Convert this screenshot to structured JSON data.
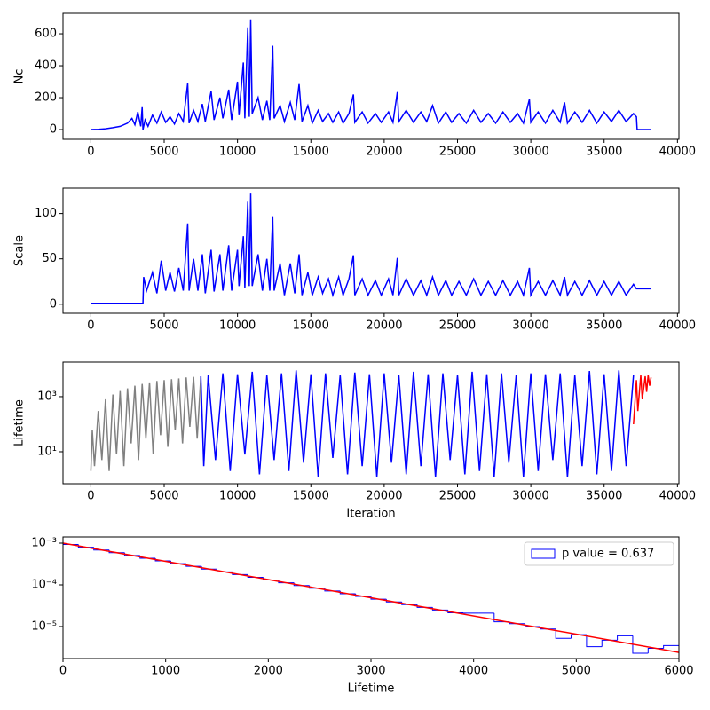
{
  "chart_data": [
    {
      "type": "line",
      "ylabel": "Nc",
      "xlim": [
        -1900,
        40100
      ],
      "ylim": [
        -61,
        728
      ],
      "xticks": [
        0,
        5000,
        10000,
        15000,
        20000,
        25000,
        30000,
        35000,
        40000
      ],
      "yticks": [
        0,
        200,
        400,
        600
      ],
      "series": [
        {
          "color": "blue",
          "x": [
            0,
            500,
            1000,
            1500,
            2000,
            2500,
            2800,
            3000,
            3200,
            3400,
            3500,
            3550,
            3700,
            3900,
            4200,
            4500,
            4800,
            5100,
            5400,
            5700,
            6000,
            6300,
            6600,
            6700,
            7000,
            7300,
            7600,
            7800,
            8200,
            8400,
            8800,
            9000,
            9400,
            9600,
            10000,
            10100,
            10400,
            10500,
            10700,
            10800,
            10900,
            11000,
            11400,
            11700,
            12000,
            12200,
            12400,
            12500,
            12900,
            13200,
            13600,
            13900,
            14200,
            14400,
            14800,
            15100,
            15500,
            15800,
            16200,
            16500,
            16900,
            17200,
            17600,
            17900,
            18000,
            18500,
            18900,
            19400,
            19800,
            20300,
            20600,
            20900,
            21000,
            21500,
            22000,
            22500,
            22900,
            23300,
            23700,
            24200,
            24600,
            25100,
            25600,
            26100,
            26600,
            27100,
            27600,
            28100,
            28600,
            29100,
            29500,
            29900,
            30000,
            30500,
            31000,
            31500,
            32000,
            32300,
            32500,
            33000,
            33500,
            34000,
            34500,
            35000,
            35500,
            36000,
            36500,
            37000,
            37200,
            37250,
            38200
          ],
          "values": [
            0,
            2,
            5,
            12,
            20,
            40,
            70,
            30,
            110,
            20,
            140,
            0,
            60,
            20,
            90,
            40,
            110,
            45,
            80,
            35,
            100,
            50,
            290,
            40,
            120,
            50,
            160,
            50,
            240,
            60,
            200,
            70,
            250,
            60,
            300,
            90,
            420,
            70,
            640,
            80,
            690,
            100,
            200,
            60,
            180,
            60,
            525,
            70,
            150,
            50,
            170,
            60,
            285,
            50,
            150,
            40,
            120,
            50,
            100,
            45,
            110,
            40,
            100,
            220,
            45,
            110,
            40,
            100,
            45,
            110,
            45,
            235,
            50,
            120,
            45,
            110,
            50,
            150,
            40,
            110,
            45,
            100,
            40,
            120,
            45,
            100,
            40,
            110,
            45,
            100,
            40,
            190,
            45,
            110,
            40,
            120,
            45,
            170,
            40,
            110,
            45,
            120,
            40,
            110,
            50,
            120,
            50,
            100,
            80,
            0,
            0
          ]
        }
      ]
    },
    {
      "type": "line",
      "ylabel": "Scale",
      "xlim": [
        -1900,
        40100
      ],
      "ylim": [
        -10,
        128
      ],
      "xticks": [
        0,
        5000,
        10000,
        15000,
        20000,
        25000,
        30000,
        35000,
        40000
      ],
      "yticks": [
        0,
        50,
        100
      ],
      "series": [
        {
          "color": "blue",
          "x": [
            0,
            3550,
            3600,
            3800,
            4200,
            4500,
            4800,
            5100,
            5400,
            5700,
            6000,
            6300,
            6600,
            6700,
            7000,
            7300,
            7600,
            7800,
            8200,
            8400,
            8800,
            9000,
            9400,
            9600,
            10000,
            10100,
            10400,
            10500,
            10700,
            10800,
            10900,
            11000,
            11400,
            11700,
            12000,
            12200,
            12400,
            12500,
            12900,
            13200,
            13600,
            13900,
            14200,
            14400,
            14800,
            15100,
            15500,
            15800,
            16200,
            16500,
            16900,
            17200,
            17600,
            17900,
            18000,
            18500,
            18900,
            19400,
            19800,
            20300,
            20600,
            20900,
            21000,
            21500,
            22000,
            22500,
            22900,
            23300,
            23700,
            24200,
            24600,
            25100,
            25600,
            26100,
            26600,
            27100,
            27600,
            28100,
            28600,
            29100,
            29500,
            29900,
            30000,
            30500,
            31000,
            31500,
            32000,
            32300,
            32500,
            33000,
            33500,
            34000,
            34500,
            35000,
            35500,
            36000,
            36500,
            37000,
            37200,
            38200
          ],
          "values": [
            1,
            1,
            30,
            15,
            35,
            12,
            48,
            15,
            35,
            14,
            40,
            15,
            89,
            15,
            50,
            15,
            55,
            12,
            60,
            14,
            55,
            15,
            65,
            15,
            60,
            20,
            75,
            18,
            113,
            20,
            122,
            20,
            55,
            15,
            50,
            15,
            97,
            15,
            45,
            10,
            45,
            12,
            55,
            10,
            35,
            10,
            30,
            12,
            28,
            10,
            30,
            10,
            28,
            54,
            10,
            28,
            10,
            26,
            10,
            28,
            10,
            51,
            10,
            28,
            10,
            26,
            10,
            30,
            10,
            26,
            10,
            25,
            10,
            28,
            10,
            25,
            10,
            26,
            10,
            25,
            10,
            40,
            10,
            25,
            10,
            26,
            10,
            30,
            10,
            25,
            10,
            26,
            10,
            25,
            10,
            25,
            10,
            22,
            17,
            17
          ]
        }
      ]
    },
    {
      "type": "line",
      "ylabel": "Lifetime",
      "xlabel": "Iteration",
      "log_y": true,
      "xlim": [
        -1900,
        40100
      ],
      "ylim": [
        0.69,
        18000
      ],
      "xticks": [
        0,
        5000,
        10000,
        15000,
        20000,
        25000,
        30000,
        35000,
        40000
      ],
      "yticks": [
        {
          "value": 10,
          "label": "10¹"
        },
        {
          "value": 1000,
          "label": "10³"
        }
      ],
      "series": [
        {
          "color": "gray",
          "x": [
            0,
            100,
            250,
            500,
            750,
            1000,
            1250,
            1500,
            1750,
            2000,
            2250,
            2500,
            2750,
            3000,
            3250,
            3500,
            3750,
            4000,
            4250,
            4500,
            4750,
            5000,
            5250,
            5500,
            5750,
            6000,
            6250,
            6500,
            6750,
            7000,
            7250,
            7500
          ],
          "values": [
            2,
            60,
            3,
            300,
            5,
            800,
            2,
            1200,
            8,
            1600,
            3,
            2000,
            20,
            2500,
            5,
            2900,
            30,
            3300,
            8,
            3700,
            40,
            4000,
            15,
            4300,
            60,
            4600,
            20,
            5000,
            80,
            5200,
            30,
            5500
          ]
        },
        {
          "color": "blue",
          "x": [
            7500,
            7700,
            8000,
            8500,
            9000,
            9500,
            10000,
            10500,
            11000,
            11500,
            12000,
            12500,
            13000,
            13500,
            14000,
            14500,
            15000,
            15500,
            16000,
            16500,
            17000,
            17500,
            18000,
            18500,
            19000,
            19500,
            20000,
            20500,
            21000,
            21500,
            22000,
            22500,
            23000,
            23500,
            24000,
            24500,
            25000,
            25500,
            26000,
            26500,
            27000,
            27500,
            28000,
            28500,
            29000,
            29500,
            30000,
            30500,
            31000,
            31500,
            32000,
            32500,
            33000,
            33500,
            34000,
            34500,
            35000,
            35500,
            36000,
            36500,
            37000
          ],
          "values": [
            5500,
            3,
            6000,
            5,
            7000,
            2,
            6500,
            8,
            8000,
            1.5,
            6000,
            5,
            7000,
            2,
            9000,
            4,
            6500,
            1.2,
            7000,
            6,
            6000,
            1.5,
            7500,
            3,
            6500,
            1.2,
            7000,
            4,
            6000,
            1.5,
            8000,
            3,
            6500,
            1.2,
            7000,
            5,
            6000,
            1.5,
            8000,
            2,
            6500,
            1.2,
            7000,
            4,
            6000,
            1.2,
            7000,
            2,
            6500,
            5,
            7000,
            1.2,
            6000,
            3,
            8500,
            1.5,
            6500,
            2,
            9000,
            3,
            6000
          ]
        },
        {
          "color": "red",
          "x": [
            37000,
            37200,
            37300,
            37500,
            37600,
            37800,
            37900,
            38000,
            38100,
            38200
          ],
          "values": [
            100,
            4000,
            300,
            6000,
            800,
            5500,
            1500,
            6000,
            2500,
            5000
          ]
        }
      ]
    },
    {
      "type": "histogram",
      "xlabel": "Lifetime",
      "log_y": true,
      "xlim": [
        0,
        6000
      ],
      "ylim": [
        1.71e-06,
        0.00141
      ],
      "xticks": [
        0,
        1000,
        2000,
        3000,
        4000,
        5000,
        6000
      ],
      "yticks": [
        {
          "value": 0.001,
          "label": "10⁻³"
        },
        {
          "value": 0.0001,
          "label": "10⁻⁴"
        },
        {
          "value": 1e-05,
          "label": "10⁻⁵"
        }
      ],
      "legend": "upper right",
      "series": [
        {
          "name": "p value = 0.637",
          "color": "blue",
          "bins": [
            0,
            150,
            300,
            450,
            600,
            750,
            900,
            1050,
            1200,
            1350,
            1500,
            1650,
            1800,
            1950,
            2100,
            2250,
            2400,
            2550,
            2700,
            2850,
            3000,
            3150,
            3300,
            3450,
            3600,
            3750,
            3900,
            4050,
            4200,
            4350,
            4500,
            4650,
            4800,
            4950,
            5100,
            5250,
            5400,
            5550,
            5700,
            5850,
            6000
          ],
          "values": [
            0.00093,
            0.000797,
            0.000686,
            0.00059,
            0.000507,
            0.000436,
            0.000375,
            0.000323,
            0.000278,
            0.000239,
            0.000205,
            0.000177,
            0.000152,
            0.000131,
            0.000112,
            9.65e-05,
            8.3e-05,
            7.14e-05,
            6.14e-05,
            5.28e-05,
            4.54e-05,
            3.9e-05,
            3.36e-05,
            2.89e-05,
            2.48e-05,
            2.14e-05,
            2.1e-05,
            2.1e-05,
            1.3e-05,
            1.17e-05,
            1e-05,
            8.7e-06,
            5.2e-06,
            6.4e-06,
            3.3e-06,
            4.7e-06,
            6e-06,
            2.3e-06,
            3e-06,
            3.5e-06
          ]
        }
      ],
      "fit": {
        "color": "red",
        "x": [
          0,
          6000
        ],
        "values": [
          0.001,
          2.4e-06
        ]
      }
    }
  ]
}
